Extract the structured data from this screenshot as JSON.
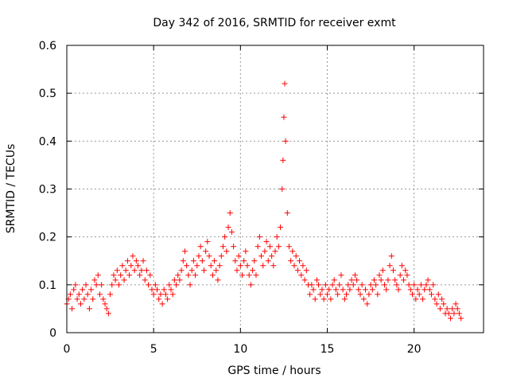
{
  "chart_data": {
    "type": "scatter",
    "title": "Day 342 of 2016, SRMTID for receiver exmt",
    "xlabel": "GPS time / hours",
    "ylabel": "SRMTID / TECUs",
    "xlim": [
      0,
      24
    ],
    "ylim": [
      0,
      0.6
    ],
    "xticks": [
      0,
      5,
      10,
      15,
      20
    ],
    "yticks": [
      0,
      0.1,
      0.2,
      0.3,
      0.4,
      0.5,
      0.6
    ],
    "xtick_labels": [
      "0",
      "5",
      "10",
      "15",
      "20"
    ],
    "ytick_labels": [
      "0",
      "0.1",
      "0.2",
      "0.3",
      "0.4",
      "0.5",
      "0.6"
    ],
    "grid": true,
    "marker": "+",
    "color": "#ff0000",
    "series": [
      {
        "name": "SRMTID",
        "x": [
          0.0,
          0.1,
          0.2,
          0.3,
          0.4,
          0.5,
          0.6,
          0.7,
          0.8,
          0.9,
          1.0,
          1.1,
          1.2,
          1.3,
          1.4,
          1.5,
          1.6,
          1.7,
          1.8,
          1.9,
          2.0,
          2.1,
          2.2,
          2.3,
          2.4,
          2.5,
          2.6,
          2.7,
          2.8,
          2.9,
          3.0,
          3.1,
          3.2,
          3.3,
          3.4,
          3.5,
          3.6,
          3.7,
          3.8,
          3.9,
          4.0,
          4.1,
          4.2,
          4.3,
          4.4,
          4.5,
          4.6,
          4.7,
          4.8,
          4.9,
          5.0,
          5.1,
          5.2,
          5.3,
          5.4,
          5.5,
          5.6,
          5.7,
          5.8,
          5.9,
          6.0,
          6.1,
          6.2,
          6.3,
          6.4,
          6.5,
          6.6,
          6.7,
          6.8,
          6.9,
          7.0,
          7.1,
          7.2,
          7.3,
          7.4,
          7.5,
          7.6,
          7.7,
          7.8,
          7.9,
          8.0,
          8.1,
          8.2,
          8.3,
          8.4,
          8.5,
          8.6,
          8.7,
          8.8,
          8.9,
          9.0,
          9.1,
          9.2,
          9.3,
          9.4,
          9.5,
          9.6,
          9.7,
          9.8,
          9.9,
          10.0,
          10.1,
          10.2,
          10.3,
          10.4,
          10.5,
          10.6,
          10.7,
          10.8,
          10.9,
          11.0,
          11.1,
          11.2,
          11.3,
          11.4,
          11.5,
          11.6,
          11.7,
          11.8,
          11.9,
          12.0,
          12.1,
          12.2,
          12.3,
          12.4,
          12.45,
          12.5,
          12.55,
          12.6,
          12.7,
          12.8,
          12.9,
          13.0,
          13.1,
          13.2,
          13.3,
          13.4,
          13.5,
          13.6,
          13.7,
          13.8,
          13.9,
          14.0,
          14.1,
          14.2,
          14.3,
          14.4,
          14.5,
          14.6,
          14.7,
          14.8,
          14.9,
          15.0,
          15.1,
          15.2,
          15.3,
          15.4,
          15.5,
          15.6,
          15.7,
          15.8,
          15.9,
          16.0,
          16.1,
          16.2,
          16.3,
          16.4,
          16.5,
          16.6,
          16.7,
          16.8,
          16.9,
          17.0,
          17.1,
          17.2,
          17.3,
          17.4,
          17.5,
          17.6,
          17.7,
          17.8,
          17.9,
          18.0,
          18.1,
          18.2,
          18.3,
          18.4,
          18.5,
          18.6,
          18.7,
          18.8,
          18.9,
          19.0,
          19.1,
          19.2,
          19.3,
          19.4,
          19.5,
          19.6,
          19.7,
          19.8,
          19.9,
          20.0,
          20.1,
          20.2,
          20.3,
          20.4,
          20.5,
          20.6,
          20.7,
          20.8,
          20.9,
          21.0,
          21.1,
          21.2,
          21.3,
          21.4,
          21.5,
          21.6,
          21.7,
          21.8,
          21.9,
          22.0,
          22.1,
          22.2,
          22.3,
          22.4,
          22.5,
          22.6,
          22.7
        ],
        "y": [
          0.06,
          0.07,
          0.08,
          0.05,
          0.09,
          0.1,
          0.07,
          0.08,
          0.06,
          0.09,
          0.07,
          0.1,
          0.08,
          0.05,
          0.09,
          0.07,
          0.11,
          0.1,
          0.12,
          0.08,
          0.1,
          0.07,
          0.06,
          0.05,
          0.04,
          0.08,
          0.1,
          0.12,
          0.11,
          0.13,
          0.1,
          0.12,
          0.14,
          0.11,
          0.13,
          0.15,
          0.12,
          0.14,
          0.16,
          0.13,
          0.15,
          0.14,
          0.12,
          0.13,
          0.15,
          0.11,
          0.13,
          0.1,
          0.12,
          0.09,
          0.08,
          0.1,
          0.09,
          0.07,
          0.08,
          0.06,
          0.09,
          0.08,
          0.07,
          0.1,
          0.09,
          0.08,
          0.11,
          0.1,
          0.12,
          0.11,
          0.13,
          0.15,
          0.17,
          0.14,
          0.12,
          0.1,
          0.13,
          0.15,
          0.12,
          0.14,
          0.16,
          0.18,
          0.15,
          0.13,
          0.17,
          0.19,
          0.16,
          0.14,
          0.12,
          0.15,
          0.13,
          0.11,
          0.14,
          0.16,
          0.18,
          0.2,
          0.17,
          0.22,
          0.25,
          0.21,
          0.18,
          0.15,
          0.13,
          0.16,
          0.14,
          0.12,
          0.15,
          0.17,
          0.14,
          0.12,
          0.1,
          0.13,
          0.15,
          0.12,
          0.18,
          0.2,
          0.16,
          0.14,
          0.17,
          0.19,
          0.15,
          0.18,
          0.16,
          0.14,
          0.17,
          0.2,
          0.18,
          0.22,
          0.3,
          0.36,
          0.45,
          0.52,
          0.4,
          0.25,
          0.18,
          0.15,
          0.17,
          0.14,
          0.16,
          0.13,
          0.15,
          0.12,
          0.14,
          0.11,
          0.13,
          0.1,
          0.08,
          0.1,
          0.09,
          0.07,
          0.11,
          0.1,
          0.08,
          0.09,
          0.07,
          0.1,
          0.08,
          0.09,
          0.07,
          0.1,
          0.11,
          0.09,
          0.08,
          0.1,
          0.12,
          0.09,
          0.07,
          0.08,
          0.1,
          0.09,
          0.11,
          0.1,
          0.12,
          0.11,
          0.09,
          0.08,
          0.1,
          0.07,
          0.09,
          0.06,
          0.08,
          0.1,
          0.09,
          0.11,
          0.1,
          0.08,
          0.12,
          0.11,
          0.13,
          0.1,
          0.09,
          0.11,
          0.14,
          0.16,
          0.13,
          0.11,
          0.1,
          0.09,
          0.12,
          0.14,
          0.11,
          0.13,
          0.12,
          0.1,
          0.09,
          0.08,
          0.1,
          0.07,
          0.09,
          0.08,
          0.1,
          0.07,
          0.09,
          0.1,
          0.11,
          0.09,
          0.08,
          0.1,
          0.07,
          0.06,
          0.08,
          0.05,
          0.07,
          0.06,
          0.04,
          0.05,
          0.04,
          0.03,
          0.05,
          0.04,
          0.06,
          0.05,
          0.04,
          0.03
        ]
      }
    ]
  }
}
